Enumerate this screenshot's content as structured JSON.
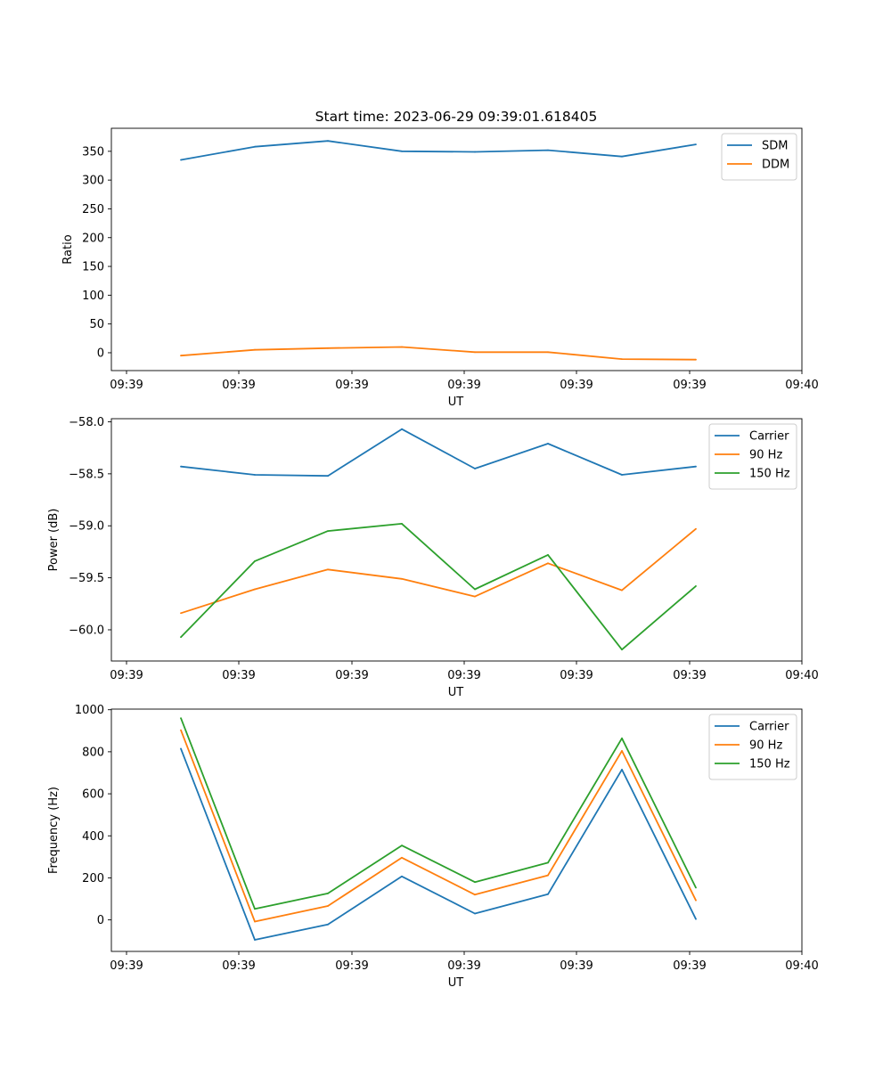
{
  "figure_title": "Start time: 2023-06-29 09:39:01.618405",
  "colors": {
    "blue": "#1f77b4",
    "orange": "#ff7f0e",
    "green": "#2ca02c"
  },
  "chart_data": [
    {
      "type": "line",
      "xlabel": "UT",
      "ylabel": "Ratio",
      "xtick_labels": [
        "09:39",
        "09:39",
        "09:39",
        "09:39",
        "09:39",
        "09:39",
        "09:40"
      ],
      "yticks": [
        0,
        50,
        100,
        150,
        200,
        250,
        300,
        350
      ],
      "ytick_labels": [
        "0",
        "50",
        "100",
        "150",
        "200",
        "250",
        "300",
        "350"
      ],
      "ylim": [
        -31,
        390
      ],
      "grid": false,
      "legend_position": "upper right",
      "series": [
        {
          "name": "SDM",
          "color": "#1f77b4",
          "values": [
            335,
            358,
            368,
            350,
            349,
            352,
            341,
            362
          ]
        },
        {
          "name": "DDM",
          "color": "#ff7f0e",
          "values": [
            -5,
            5,
            8,
            10,
            1,
            1,
            -11,
            -12
          ]
        }
      ]
    },
    {
      "type": "line",
      "xlabel": "UT",
      "ylabel": "Power (dB)",
      "xtick_labels": [
        "09:39",
        "09:39",
        "09:39",
        "09:39",
        "09:39",
        "09:39",
        "09:40"
      ],
      "yticks": [
        -60.0,
        -59.5,
        -59.0,
        -58.5,
        -58.0
      ],
      "ytick_labels": [
        "−60.0",
        "−59.5",
        "−59.0",
        "−58.5",
        "−58.0"
      ],
      "ylim": [
        -60.3,
        -57.97
      ],
      "grid": false,
      "legend_position": "upper right",
      "series": [
        {
          "name": "Carrier",
          "color": "#1f77b4",
          "values": [
            -58.43,
            -58.51,
            -58.52,
            -58.07,
            -58.45,
            -58.21,
            -58.51,
            -58.43
          ]
        },
        {
          "name": "90 Hz",
          "color": "#ff7f0e",
          "values": [
            -59.84,
            -59.61,
            -59.42,
            -59.51,
            -59.68,
            -59.36,
            -59.62,
            -59.03
          ]
        },
        {
          "name": "150 Hz",
          "color": "#2ca02c",
          "values": [
            -60.07,
            -59.34,
            -59.05,
            -58.98,
            -59.61,
            -59.28,
            -60.19,
            -59.58
          ]
        }
      ]
    },
    {
      "type": "line",
      "xlabel": "UT",
      "ylabel": "Frequency (Hz)",
      "xtick_labels": [
        "09:39",
        "09:39",
        "09:39",
        "09:39",
        "09:39",
        "09:39",
        "09:40"
      ],
      "yticks": [
        0,
        200,
        400,
        600,
        800,
        1000
      ],
      "ytick_labels": [
        "0",
        "200",
        "400",
        "600",
        "800",
        "1000"
      ],
      "ylim": [
        -150,
        1003
      ],
      "grid": false,
      "legend_position": "upper right",
      "series": [
        {
          "name": "Carrier",
          "color": "#1f77b4",
          "values": [
            815,
            -95,
            -22,
            207,
            30,
            122,
            715,
            4
          ]
        },
        {
          "name": "90 Hz",
          "color": "#ff7f0e",
          "values": [
            903,
            -8,
            66,
            296,
            120,
            212,
            804,
            93
          ]
        },
        {
          "name": "150 Hz",
          "color": "#2ca02c",
          "values": [
            960,
            52,
            126,
            354,
            180,
            272,
            864,
            153
          ]
        }
      ]
    }
  ]
}
